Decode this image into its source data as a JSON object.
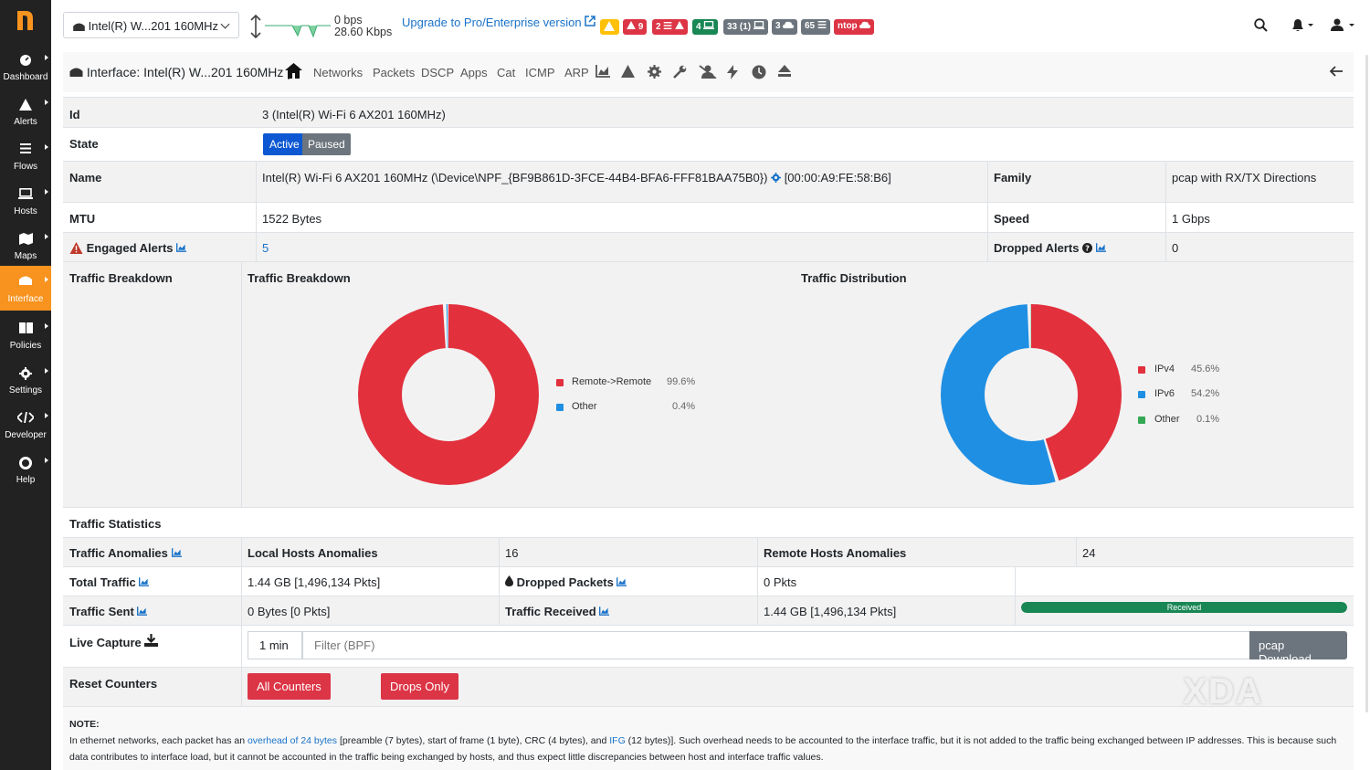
{
  "sidebar": {
    "items": [
      {
        "label": "Dashboard",
        "icon": "gauge-icon"
      },
      {
        "label": "Alerts",
        "icon": "warning-icon"
      },
      {
        "label": "Flows",
        "icon": "list-icon"
      },
      {
        "label": "Hosts",
        "icon": "laptop-icon"
      },
      {
        "label": "Maps",
        "icon": "map-icon"
      },
      {
        "label": "Interface",
        "icon": "ethernet-icon"
      },
      {
        "label": "Policies",
        "icon": "book-icon"
      },
      {
        "label": "Settings",
        "icon": "gear-icon"
      },
      {
        "label": "Developer",
        "icon": "code-icon"
      },
      {
        "label": "Help",
        "icon": "lifebuoy-icon"
      }
    ],
    "active": "Interface"
  },
  "topbar": {
    "interface_select": "Intel(R) W...201 160MHz",
    "throughput_top": "0 bps",
    "throughput_bottom": "28.60 Kbps",
    "upgrade_link": "Upgrade to Pro/Enterprise version",
    "badges": [
      "",
      "9",
      "2",
      "4",
      "33 (1)",
      "3",
      "65",
      "ntop"
    ]
  },
  "subnav": {
    "title": "Interface: Intel(R) W...201 160MHz |",
    "links": [
      "Networks",
      "Packets",
      "DSCP",
      "Apps",
      "Cat",
      "ICMP",
      "ARP"
    ]
  },
  "details": {
    "id_label": "Id",
    "id_value": "3 (Intel(R) Wi-Fi 6 AX201 160MHz)",
    "state_label": "State",
    "state_active": "Active",
    "state_paused": "Paused",
    "name_label": "Name",
    "name_value": "Intel(R) Wi-Fi 6 AX201 160MHz (\\Device\\NPF_{BF9B861D-3FCE-44B4-BFA6-FFF81BAA75B0})",
    "mac_value": "[00:00:A9:FE:58:B6]",
    "family_label": "Family",
    "family_value": "pcap with RX/TX Directions",
    "mtu_label": "MTU",
    "mtu_value": "1522 Bytes",
    "speed_label": "Speed",
    "speed_value": "1 Gbps",
    "engaged_label": "Engaged Alerts",
    "engaged_value": "5",
    "dropped_alerts_label": "Dropped Alerts",
    "dropped_alerts_value": "0"
  },
  "charts": {
    "row_label": "Traffic Breakdown",
    "breakdown_title": "Traffic Breakdown",
    "distribution_title": "Traffic Distribution",
    "colors": {
      "red": "#e2303d",
      "blue": "#1f8fe3",
      "green": "#34a853"
    }
  },
  "chart_data": [
    {
      "type": "pie",
      "title": "Traffic Breakdown",
      "slices": [
        {
          "label": "Remote->Remote",
          "value": 99.6,
          "pct": "99.6%",
          "color": "#e2303d"
        },
        {
          "label": "Other",
          "value": 0.4,
          "pct": "0.4%",
          "color": "#1f8fe3"
        }
      ]
    },
    {
      "type": "pie",
      "title": "Traffic Distribution",
      "slices": [
        {
          "label": "IPv4",
          "value": 45.6,
          "pct": "45.6%",
          "color": "#e2303d"
        },
        {
          "label": "IPv6",
          "value": 54.2,
          "pct": "54.2%",
          "color": "#1f8fe3"
        },
        {
          "label": "Other",
          "value": 0.1,
          "pct": "0.1%",
          "color": "#34a853"
        }
      ]
    }
  ],
  "stats": {
    "section": "Traffic Statistics",
    "anomalies_label": "Traffic Anomalies",
    "local_label": "Local Hosts Anomalies",
    "local_value": "16",
    "remote_label": "Remote Hosts Anomalies",
    "remote_value": "24",
    "total_label": "Total Traffic",
    "total_value": "1.44 GB [1,496,134 Pkts]",
    "dropped_label": "Dropped Packets",
    "dropped_value": "0 Pkts",
    "sent_label": "Traffic Sent",
    "sent_value": "0 Bytes [0 Pkts]",
    "received_label": "Traffic Received",
    "received_value": "1.44 GB [1,496,134 Pkts]",
    "received_bar": "Received",
    "received_fraction": 1.0
  },
  "capture": {
    "label": "Live Capture",
    "duration": "1 min",
    "filter_placeholder": "Filter (BPF)",
    "download": "pcap Download"
  },
  "reset": {
    "label": "Reset Counters",
    "all": "All Counters",
    "drops": "Drops Only"
  },
  "note": {
    "title": "NOTE:",
    "p1": "In ethernet networks, each packet has an ",
    "link1": "overhead of 24 bytes",
    "p2": " [preamble (7 bytes), start of frame (1 byte), CRC (4 bytes), and ",
    "link2": "IFG",
    "p3": " (12 bytes)]. Such overhead needs to be accounted to the interface traffic, but it is not added to the traffic being exchanged between IP addresses. This is because such data contributes to interface load, but it cannot be accounted in the traffic being exchanged by hosts, and thus expect little discrepancies between host and interface traffic values."
  },
  "watermark": "XDA"
}
